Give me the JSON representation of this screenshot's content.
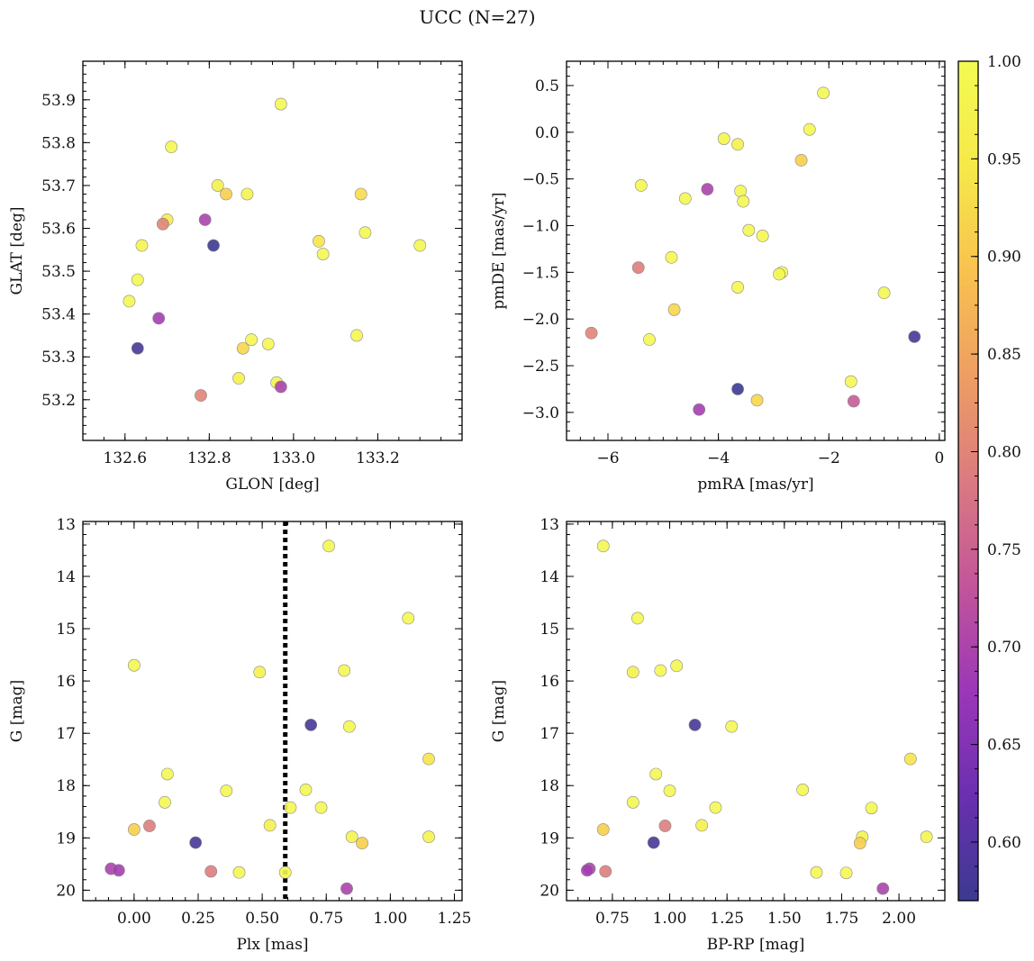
{
  "figure": {
    "title": "UCC (N=27)"
  },
  "colormap": {
    "name": "plasma",
    "min": 0.57,
    "max": 1.0,
    "ticks": [
      "0.60",
      "0.65",
      "0.70",
      "0.75",
      "0.80",
      "0.85",
      "0.90",
      "0.95",
      "1.00"
    ],
    "tick_values": [
      0.6,
      0.65,
      0.7,
      0.75,
      0.8,
      0.85,
      0.9,
      0.95,
      1.0
    ],
    "stops": [
      "#3c3a90",
      "#6a2fb0",
      "#9b37b8",
      "#c2559a",
      "#db7a80",
      "#ee9e63",
      "#f8c24f",
      "#f6e94a",
      "#f3fa52"
    ]
  },
  "chart_data": [
    {
      "type": "scatter",
      "xlabel": "GLON [deg]",
      "ylabel": "GLAT [deg]",
      "xlim": [
        132.5,
        133.4
      ],
      "ylim": [
        53.105,
        53.99
      ],
      "xticks": [
        132.6,
        132.8,
        133.0,
        133.2
      ],
      "xtick_labels": [
        "132.6",
        "132.8",
        "133.0",
        "133.2"
      ],
      "yticks": [
        53.2,
        53.3,
        53.4,
        53.5,
        53.6,
        53.7,
        53.8,
        53.9
      ],
      "ytick_labels": [
        "53.2",
        "53.3",
        "53.4",
        "53.5",
        "53.6",
        "53.7",
        "53.8",
        "53.9"
      ],
      "x_minor_step": 0.05,
      "y_minor_step": 0.02,
      "invert_y": false,
      "vline": null,
      "points": [
        {
          "x": 132.97,
          "y": 53.89,
          "c": 1.0
        },
        {
          "x": 132.71,
          "y": 53.79,
          "c": 0.99
        },
        {
          "x": 132.82,
          "y": 53.7,
          "c": 0.97
        },
        {
          "x": 132.84,
          "y": 53.68,
          "c": 0.91
        },
        {
          "x": 132.89,
          "y": 53.68,
          "c": 0.98
        },
        {
          "x": 133.16,
          "y": 53.68,
          "c": 0.93
        },
        {
          "x": 132.7,
          "y": 53.62,
          "c": 0.96
        },
        {
          "x": 132.79,
          "y": 53.62,
          "c": 0.7
        },
        {
          "x": 132.69,
          "y": 53.61,
          "c": 0.8
        },
        {
          "x": 133.17,
          "y": 53.59,
          "c": 0.99
        },
        {
          "x": 133.06,
          "y": 53.57,
          "c": 0.94
        },
        {
          "x": 132.64,
          "y": 53.56,
          "c": 0.98
        },
        {
          "x": 132.81,
          "y": 53.56,
          "c": 0.57
        },
        {
          "x": 133.3,
          "y": 53.56,
          "c": 0.99
        },
        {
          "x": 133.07,
          "y": 53.54,
          "c": 0.99
        },
        {
          "x": 132.63,
          "y": 53.48,
          "c": 0.99
        },
        {
          "x": 132.61,
          "y": 53.43,
          "c": 0.99
        },
        {
          "x": 132.68,
          "y": 53.39,
          "c": 0.69
        },
        {
          "x": 133.15,
          "y": 53.35,
          "c": 0.99
        },
        {
          "x": 132.9,
          "y": 53.34,
          "c": 0.99
        },
        {
          "x": 132.94,
          "y": 53.33,
          "c": 0.99
        },
        {
          "x": 132.88,
          "y": 53.32,
          "c": 0.92
        },
        {
          "x": 132.63,
          "y": 53.32,
          "c": 0.58
        },
        {
          "x": 132.87,
          "y": 53.25,
          "c": 0.97
        },
        {
          "x": 132.96,
          "y": 53.24,
          "c": 0.98
        },
        {
          "x": 132.97,
          "y": 53.23,
          "c": 0.7
        },
        {
          "x": 132.78,
          "y": 53.21,
          "c": 0.8
        }
      ]
    },
    {
      "type": "scatter",
      "xlabel": "pmRA [mas/yr]",
      "ylabel": "pmDE [mas/yr]",
      "xlim": [
        -6.75,
        0.1
      ],
      "ylim": [
        -3.3,
        0.76
      ],
      "xticks": [
        -6,
        -4,
        -2,
        0
      ],
      "xtick_labels": [
        "−6",
        "−4",
        "−2",
        "0"
      ],
      "yticks": [
        -3.0,
        -2.5,
        -2.0,
        -1.5,
        -1.0,
        -0.5,
        0.0,
        0.5
      ],
      "ytick_labels": [
        "−3.0",
        "−2.5",
        "−2.0",
        "−1.5",
        "−1.0",
        "−0.5",
        "0.0",
        "0.5"
      ],
      "x_minor_step": 0.25,
      "y_minor_step": 0.1,
      "invert_y": false,
      "vline": null,
      "points": [
        {
          "x": -2.1,
          "y": 0.42,
          "c": 0.99
        },
        {
          "x": -2.35,
          "y": 0.03,
          "c": 0.99
        },
        {
          "x": -3.9,
          "y": -0.07,
          "c": 0.98
        },
        {
          "x": -3.65,
          "y": -0.13,
          "c": 0.97
        },
        {
          "x": -2.5,
          "y": -0.3,
          "c": 0.91
        },
        {
          "x": -5.4,
          "y": -0.57,
          "c": 0.99
        },
        {
          "x": -4.2,
          "y": -0.61,
          "c": 0.7
        },
        {
          "x": -3.6,
          "y": -0.63,
          "c": 0.99
        },
        {
          "x": -4.6,
          "y": -0.71,
          "c": 0.99
        },
        {
          "x": -3.55,
          "y": -0.74,
          "c": 0.99
        },
        {
          "x": -3.45,
          "y": -1.05,
          "c": 0.99
        },
        {
          "x": -3.2,
          "y": -1.11,
          "c": 0.99
        },
        {
          "x": -4.85,
          "y": -1.34,
          "c": 0.99
        },
        {
          "x": -5.45,
          "y": -1.45,
          "c": 0.79
        },
        {
          "x": -2.85,
          "y": -1.5,
          "c": 0.99
        },
        {
          "x": -2.9,
          "y": -1.52,
          "c": 0.99
        },
        {
          "x": -3.65,
          "y": -1.66,
          "c": 0.99
        },
        {
          "x": -1.0,
          "y": -1.72,
          "c": 0.99
        },
        {
          "x": -4.8,
          "y": -1.9,
          "c": 0.92
        },
        {
          "x": -6.3,
          "y": -2.15,
          "c": 0.8
        },
        {
          "x": -0.45,
          "y": -2.19,
          "c": 0.58
        },
        {
          "x": -5.25,
          "y": -2.22,
          "c": 0.99
        },
        {
          "x": -1.6,
          "y": -2.67,
          "c": 0.99
        },
        {
          "x": -3.65,
          "y": -2.75,
          "c": 0.57
        },
        {
          "x": -3.3,
          "y": -2.87,
          "c": 0.92
        },
        {
          "x": -1.55,
          "y": -2.88,
          "c": 0.74
        },
        {
          "x": -4.35,
          "y": -2.97,
          "c": 0.69
        }
      ]
    },
    {
      "type": "scatter",
      "xlabel": "Plx [mas]",
      "ylabel": "G [mag]",
      "xlim": [
        -0.2,
        1.28
      ],
      "ylim": [
        20.2,
        12.95
      ],
      "xticks": [
        0.0,
        0.25,
        0.5,
        0.75,
        1.0,
        1.25
      ],
      "xtick_labels": [
        "0.00",
        "0.25",
        "0.50",
        "0.75",
        "1.00",
        "1.25"
      ],
      "yticks": [
        13,
        14,
        15,
        16,
        17,
        18,
        19,
        20
      ],
      "ytick_labels": [
        "13",
        "14",
        "15",
        "16",
        "17",
        "18",
        "19",
        "20"
      ],
      "x_minor_step": 0.05,
      "y_minor_step": 0.2,
      "invert_y": true,
      "vline": 0.59,
      "points": [
        {
          "x": 0.76,
          "y": 13.42,
          "c": 0.99
        },
        {
          "x": 1.07,
          "y": 14.8,
          "c": 0.99
        },
        {
          "x": 0.0,
          "y": 15.7,
          "c": 0.99
        },
        {
          "x": 0.49,
          "y": 15.83,
          "c": 0.97
        },
        {
          "x": 0.82,
          "y": 15.8,
          "c": 0.99
        },
        {
          "x": 0.69,
          "y": 16.84,
          "c": 0.58
        },
        {
          "x": 0.84,
          "y": 16.87,
          "c": 0.99
        },
        {
          "x": 1.15,
          "y": 17.49,
          "c": 0.94
        },
        {
          "x": 0.13,
          "y": 17.78,
          "c": 0.99
        },
        {
          "x": 0.36,
          "y": 18.1,
          "c": 0.99
        },
        {
          "x": 0.67,
          "y": 18.08,
          "c": 0.99
        },
        {
          "x": 0.12,
          "y": 18.32,
          "c": 0.99
        },
        {
          "x": 0.73,
          "y": 18.42,
          "c": 0.99
        },
        {
          "x": 0.61,
          "y": 18.42,
          "c": 0.99
        },
        {
          "x": 0.53,
          "y": 18.76,
          "c": 0.97
        },
        {
          "x": 0.06,
          "y": 18.77,
          "c": 0.79
        },
        {
          "x": 0.0,
          "y": 18.84,
          "c": 0.91
        },
        {
          "x": 0.85,
          "y": 18.98,
          "c": 0.98
        },
        {
          "x": 1.15,
          "y": 18.98,
          "c": 0.98
        },
        {
          "x": 0.89,
          "y": 19.1,
          "c": 0.91
        },
        {
          "x": 0.24,
          "y": 19.09,
          "c": 0.58
        },
        {
          "x": -0.09,
          "y": 19.59,
          "c": 0.7
        },
        {
          "x": -0.06,
          "y": 19.62,
          "c": 0.69
        },
        {
          "x": 0.3,
          "y": 19.64,
          "c": 0.79
        },
        {
          "x": 0.41,
          "y": 19.66,
          "c": 0.99
        },
        {
          "x": 0.59,
          "y": 19.66,
          "c": 0.99
        },
        {
          "x": 0.83,
          "y": 19.97,
          "c": 0.7
        }
      ]
    },
    {
      "type": "scatter",
      "xlabel": "BP-RP [mag]",
      "ylabel": "G [mag]",
      "xlim": [
        0.55,
        2.2
      ],
      "ylim": [
        20.2,
        12.95
      ],
      "xticks": [
        0.75,
        1.0,
        1.25,
        1.5,
        1.75,
        2.0
      ],
      "xtick_labels": [
        "0.75",
        "1.00",
        "1.25",
        "1.50",
        "1.75",
        "2.00"
      ],
      "yticks": [
        13,
        14,
        15,
        16,
        17,
        18,
        19,
        20
      ],
      "ytick_labels": [
        "13",
        "14",
        "15",
        "16",
        "17",
        "18",
        "19",
        "20"
      ],
      "x_minor_step": 0.05,
      "y_minor_step": 0.2,
      "invert_y": true,
      "vline": null,
      "points": [
        {
          "x": 0.71,
          "y": 13.42,
          "c": 0.99
        },
        {
          "x": 0.86,
          "y": 14.8,
          "c": 0.99
        },
        {
          "x": 0.84,
          "y": 15.83,
          "c": 0.97
        },
        {
          "x": 0.96,
          "y": 15.8,
          "c": 0.99
        },
        {
          "x": 1.03,
          "y": 15.71,
          "c": 0.99
        },
        {
          "x": 1.11,
          "y": 16.84,
          "c": 0.58
        },
        {
          "x": 1.27,
          "y": 16.87,
          "c": 0.99
        },
        {
          "x": 2.05,
          "y": 17.49,
          "c": 0.94
        },
        {
          "x": 0.94,
          "y": 17.78,
          "c": 0.99
        },
        {
          "x": 1.0,
          "y": 18.1,
          "c": 0.99
        },
        {
          "x": 1.58,
          "y": 18.08,
          "c": 0.99
        },
        {
          "x": 0.84,
          "y": 18.32,
          "c": 0.99
        },
        {
          "x": 1.2,
          "y": 18.42,
          "c": 0.99
        },
        {
          "x": 1.88,
          "y": 18.43,
          "c": 0.99
        },
        {
          "x": 1.14,
          "y": 18.76,
          "c": 0.97
        },
        {
          "x": 0.98,
          "y": 18.77,
          "c": 0.79
        },
        {
          "x": 0.71,
          "y": 18.84,
          "c": 0.91
        },
        {
          "x": 1.84,
          "y": 18.98,
          "c": 0.98
        },
        {
          "x": 2.12,
          "y": 18.98,
          "c": 0.98
        },
        {
          "x": 1.83,
          "y": 19.1,
          "c": 0.91
        },
        {
          "x": 0.93,
          "y": 19.09,
          "c": 0.58
        },
        {
          "x": 0.65,
          "y": 19.59,
          "c": 0.7
        },
        {
          "x": 0.64,
          "y": 19.62,
          "c": 0.69
        },
        {
          "x": 0.72,
          "y": 19.64,
          "c": 0.79
        },
        {
          "x": 1.64,
          "y": 19.66,
          "c": 0.99
        },
        {
          "x": 1.77,
          "y": 19.67,
          "c": 0.99
        },
        {
          "x": 1.93,
          "y": 19.97,
          "c": 0.7
        }
      ]
    }
  ]
}
